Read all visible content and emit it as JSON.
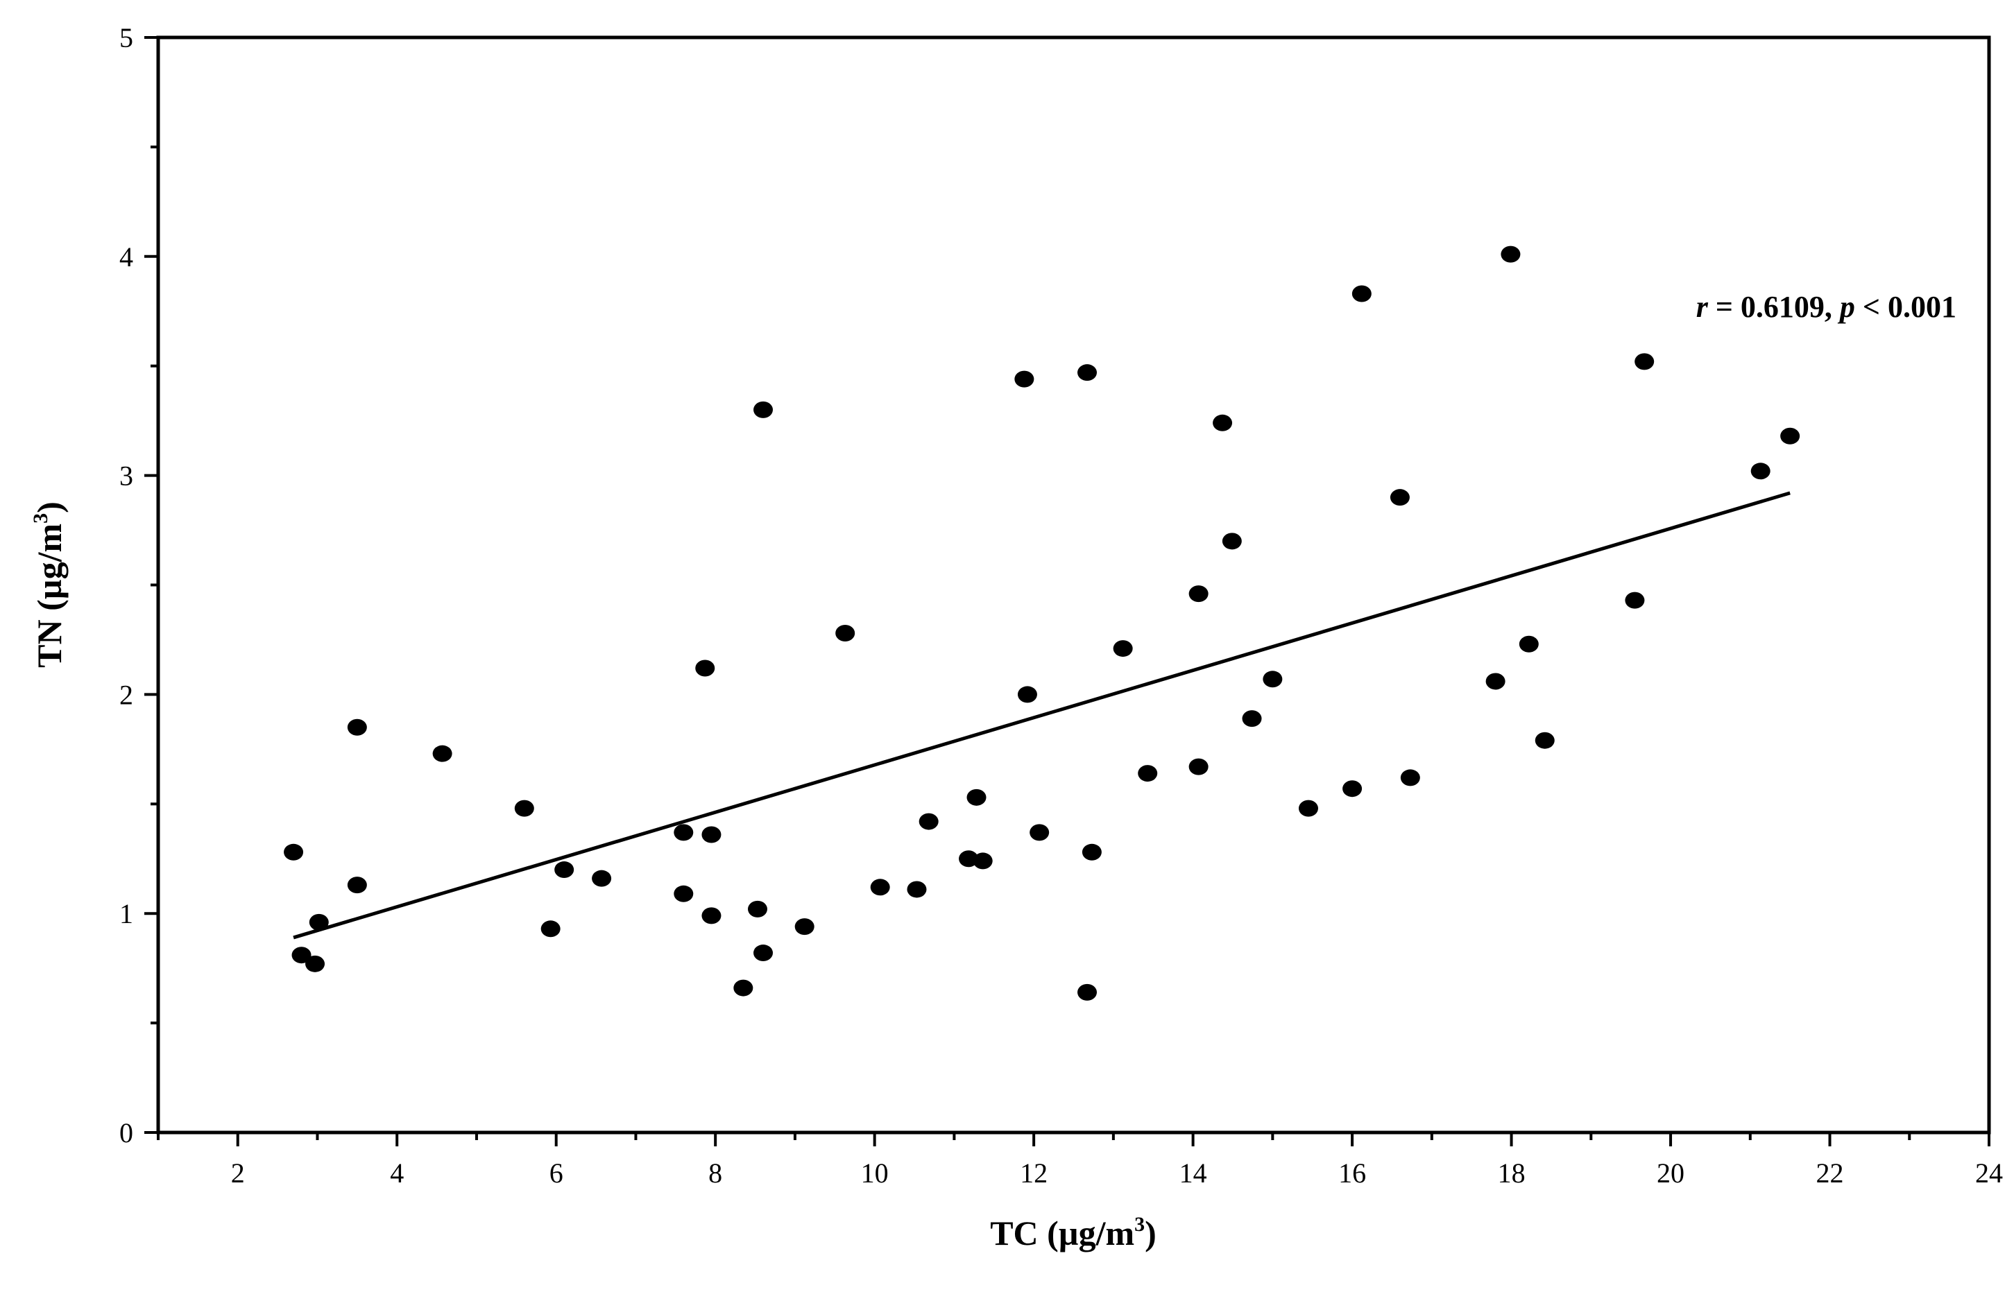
{
  "chart_data": {
    "type": "scatter",
    "title": "",
    "xlabel": {
      "main": "TC (µg/m",
      "sup": "3",
      "close": ")"
    },
    "ylabel": {
      "main": "TN (µg/m",
      "sup": "3",
      "close": ")"
    },
    "xlim": [
      1,
      24
    ],
    "ylim": [
      0,
      5
    ],
    "x_major_ticks": [
      2,
      4,
      6,
      8,
      10,
      12,
      14,
      16,
      18,
      20,
      22,
      24
    ],
    "x_minor_ticks": [
      1,
      3,
      5,
      7,
      9,
      11,
      13,
      15,
      17,
      19,
      21,
      23
    ],
    "y_major_ticks": [
      0,
      1,
      2,
      3,
      4,
      5
    ],
    "y_minor_ticks": [
      0.5,
      1.5,
      2.5,
      3.5,
      4.5
    ],
    "x_tick_labels": [
      "2",
      "4",
      "6",
      "8",
      "10",
      "12",
      "14",
      "16",
      "18",
      "20",
      "22",
      "24"
    ],
    "y_tick_labels": [
      "0",
      "1",
      "2",
      "3",
      "4",
      "5"
    ],
    "grid": false,
    "legend": "none",
    "annotation": {
      "r_symbol": "r",
      "r_text": " = 0.6109, ",
      "p_symbol": "p",
      "p_text": " < 0.001"
    },
    "trendline": {
      "x": [
        2.7,
        21.5
      ],
      "y": [
        0.89,
        2.92
      ]
    },
    "points": [
      {
        "x": 2.7,
        "y": 1.28
      },
      {
        "x": 2.8,
        "y": 0.81
      },
      {
        "x": 2.97,
        "y": 0.77
      },
      {
        "x": 3.02,
        "y": 0.96
      },
      {
        "x": 3.5,
        "y": 1.85
      },
      {
        "x": 3.5,
        "y": 1.13
      },
      {
        "x": 4.57,
        "y": 1.73
      },
      {
        "x": 5.6,
        "y": 1.48
      },
      {
        "x": 5.93,
        "y": 0.93
      },
      {
        "x": 6.1,
        "y": 1.2
      },
      {
        "x": 6.57,
        "y": 1.16
      },
      {
        "x": 7.6,
        "y": 1.37
      },
      {
        "x": 7.6,
        "y": 1.09
      },
      {
        "x": 7.87,
        "y": 2.12
      },
      {
        "x": 7.95,
        "y": 1.36
      },
      {
        "x": 7.95,
        "y": 0.99
      },
      {
        "x": 8.35,
        "y": 0.66
      },
      {
        "x": 8.53,
        "y": 1.02
      },
      {
        "x": 8.6,
        "y": 3.3
      },
      {
        "x": 8.6,
        "y": 0.82
      },
      {
        "x": 9.12,
        "y": 0.94
      },
      {
        "x": 9.63,
        "y": 2.28
      },
      {
        "x": 10.07,
        "y": 1.12
      },
      {
        "x": 10.53,
        "y": 1.11
      },
      {
        "x": 10.68,
        "y": 1.42
      },
      {
        "x": 11.18,
        "y": 1.25
      },
      {
        "x": 11.28,
        "y": 1.53
      },
      {
        "x": 11.36,
        "y": 1.24
      },
      {
        "x": 11.88,
        "y": 3.44
      },
      {
        "x": 11.92,
        "y": 2.0
      },
      {
        "x": 12.07,
        "y": 1.37
      },
      {
        "x": 12.67,
        "y": 3.47
      },
      {
        "x": 12.67,
        "y": 0.64
      },
      {
        "x": 12.73,
        "y": 1.28
      },
      {
        "x": 13.12,
        "y": 2.21
      },
      {
        "x": 13.43,
        "y": 1.64
      },
      {
        "x": 14.07,
        "y": 2.46
      },
      {
        "x": 14.07,
        "y": 1.67
      },
      {
        "x": 14.37,
        "y": 3.24
      },
      {
        "x": 14.49,
        "y": 2.7
      },
      {
        "x": 14.74,
        "y": 1.89
      },
      {
        "x": 15.0,
        "y": 2.07
      },
      {
        "x": 15.45,
        "y": 1.48
      },
      {
        "x": 16.0,
        "y": 1.57
      },
      {
        "x": 16.12,
        "y": 3.83
      },
      {
        "x": 16.6,
        "y": 2.9
      },
      {
        "x": 16.73,
        "y": 1.62
      },
      {
        "x": 17.8,
        "y": 2.06
      },
      {
        "x": 17.99,
        "y": 4.01
      },
      {
        "x": 18.22,
        "y": 2.23
      },
      {
        "x": 18.42,
        "y": 1.79
      },
      {
        "x": 19.55,
        "y": 2.43
      },
      {
        "x": 19.67,
        "y": 3.52
      },
      {
        "x": 21.13,
        "y": 3.02
      },
      {
        "x": 21.5,
        "y": 3.18
      }
    ]
  }
}
